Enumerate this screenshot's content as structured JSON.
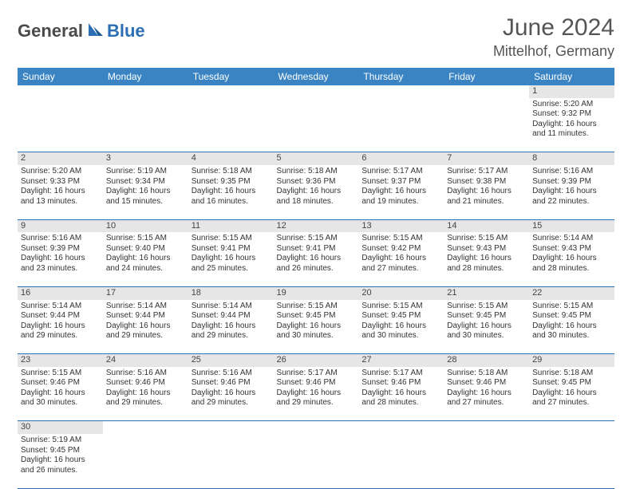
{
  "logo": {
    "text1": "General",
    "text2": "Blue"
  },
  "title": "June 2024",
  "location": "Mittelhof, Germany",
  "colors": {
    "header_bg": "#3a84c4",
    "header_text": "#ffffff",
    "daynum_bg": "#e6e6e6",
    "cell_border": "#2d6fb5",
    "logo_gray": "#4a4a4a",
    "logo_blue": "#2d6fb5",
    "page_bg": "#ffffff"
  },
  "day_names": [
    "Sunday",
    "Monday",
    "Tuesday",
    "Wednesday",
    "Thursday",
    "Friday",
    "Saturday"
  ],
  "weeks": [
    [
      null,
      null,
      null,
      null,
      null,
      null,
      {
        "n": "1",
        "sr": "5:20 AM",
        "ss": "9:32 PM",
        "dl": "16 hours and 11 minutes."
      }
    ],
    [
      {
        "n": "2",
        "sr": "5:20 AM",
        "ss": "9:33 PM",
        "dl": "16 hours and 13 minutes."
      },
      {
        "n": "3",
        "sr": "5:19 AM",
        "ss": "9:34 PM",
        "dl": "16 hours and 15 minutes."
      },
      {
        "n": "4",
        "sr": "5:18 AM",
        "ss": "9:35 PM",
        "dl": "16 hours and 16 minutes."
      },
      {
        "n": "5",
        "sr": "5:18 AM",
        "ss": "9:36 PM",
        "dl": "16 hours and 18 minutes."
      },
      {
        "n": "6",
        "sr": "5:17 AM",
        "ss": "9:37 PM",
        "dl": "16 hours and 19 minutes."
      },
      {
        "n": "7",
        "sr": "5:17 AM",
        "ss": "9:38 PM",
        "dl": "16 hours and 21 minutes."
      },
      {
        "n": "8",
        "sr": "5:16 AM",
        "ss": "9:39 PM",
        "dl": "16 hours and 22 minutes."
      }
    ],
    [
      {
        "n": "9",
        "sr": "5:16 AM",
        "ss": "9:39 PM",
        "dl": "16 hours and 23 minutes."
      },
      {
        "n": "10",
        "sr": "5:15 AM",
        "ss": "9:40 PM",
        "dl": "16 hours and 24 minutes."
      },
      {
        "n": "11",
        "sr": "5:15 AM",
        "ss": "9:41 PM",
        "dl": "16 hours and 25 minutes."
      },
      {
        "n": "12",
        "sr": "5:15 AM",
        "ss": "9:41 PM",
        "dl": "16 hours and 26 minutes."
      },
      {
        "n": "13",
        "sr": "5:15 AM",
        "ss": "9:42 PM",
        "dl": "16 hours and 27 minutes."
      },
      {
        "n": "14",
        "sr": "5:15 AM",
        "ss": "9:43 PM",
        "dl": "16 hours and 28 minutes."
      },
      {
        "n": "15",
        "sr": "5:14 AM",
        "ss": "9:43 PM",
        "dl": "16 hours and 28 minutes."
      }
    ],
    [
      {
        "n": "16",
        "sr": "5:14 AM",
        "ss": "9:44 PM",
        "dl": "16 hours and 29 minutes."
      },
      {
        "n": "17",
        "sr": "5:14 AM",
        "ss": "9:44 PM",
        "dl": "16 hours and 29 minutes."
      },
      {
        "n": "18",
        "sr": "5:14 AM",
        "ss": "9:44 PM",
        "dl": "16 hours and 29 minutes."
      },
      {
        "n": "19",
        "sr": "5:15 AM",
        "ss": "9:45 PM",
        "dl": "16 hours and 30 minutes."
      },
      {
        "n": "20",
        "sr": "5:15 AM",
        "ss": "9:45 PM",
        "dl": "16 hours and 30 minutes."
      },
      {
        "n": "21",
        "sr": "5:15 AM",
        "ss": "9:45 PM",
        "dl": "16 hours and 30 minutes."
      },
      {
        "n": "22",
        "sr": "5:15 AM",
        "ss": "9:45 PM",
        "dl": "16 hours and 30 minutes."
      }
    ],
    [
      {
        "n": "23",
        "sr": "5:15 AM",
        "ss": "9:46 PM",
        "dl": "16 hours and 30 minutes."
      },
      {
        "n": "24",
        "sr": "5:16 AM",
        "ss": "9:46 PM",
        "dl": "16 hours and 29 minutes."
      },
      {
        "n": "25",
        "sr": "5:16 AM",
        "ss": "9:46 PM",
        "dl": "16 hours and 29 minutes."
      },
      {
        "n": "26",
        "sr": "5:17 AM",
        "ss": "9:46 PM",
        "dl": "16 hours and 29 minutes."
      },
      {
        "n": "27",
        "sr": "5:17 AM",
        "ss": "9:46 PM",
        "dl": "16 hours and 28 minutes."
      },
      {
        "n": "28",
        "sr": "5:18 AM",
        "ss": "9:46 PM",
        "dl": "16 hours and 27 minutes."
      },
      {
        "n": "29",
        "sr": "5:18 AM",
        "ss": "9:45 PM",
        "dl": "16 hours and 27 minutes."
      }
    ],
    [
      {
        "n": "30",
        "sr": "5:19 AM",
        "ss": "9:45 PM",
        "dl": "16 hours and 26 minutes."
      },
      null,
      null,
      null,
      null,
      null,
      null
    ]
  ],
  "labels": {
    "sunrise": "Sunrise:",
    "sunset": "Sunset:",
    "daylight": "Daylight:"
  }
}
